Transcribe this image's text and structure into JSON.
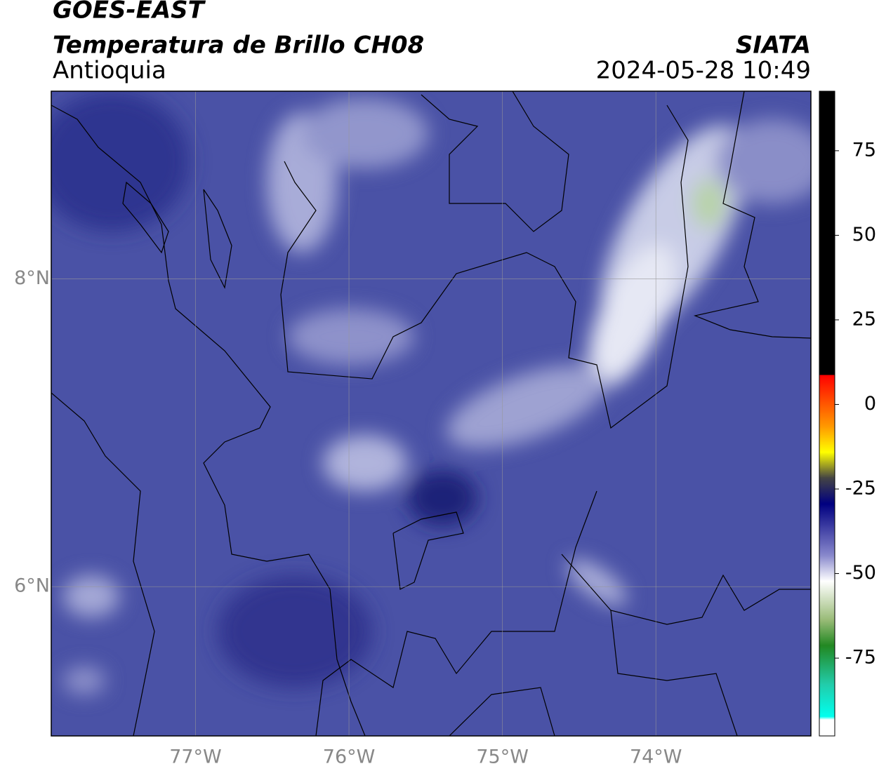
{
  "header": {
    "title": "GOES-EAST",
    "subtitle": "Temperatura de Brillo CH08",
    "region": "Antioquia",
    "source": "SIATA",
    "datetime": "2024-05-28 10:49"
  },
  "map": {
    "xlim": [
      -77.94,
      -72.99
    ],
    "ylim": [
      5.03,
      9.22
    ],
    "lon_ticks": [
      {
        "value": -77,
        "label": "77°W"
      },
      {
        "value": -76,
        "label": "76°W"
      },
      {
        "value": -75,
        "label": "75°W"
      },
      {
        "value": -74,
        "label": "74°W"
      }
    ],
    "lat_ticks": [
      {
        "value": 8,
        "label": "8°N"
      },
      {
        "value": 6,
        "label": "6°N"
      }
    ]
  },
  "colorbar": {
    "lim": [
      -98,
      92.6
    ],
    "ticks": [
      75,
      50,
      25,
      0,
      -25,
      -50,
      -75
    ]
  }
}
